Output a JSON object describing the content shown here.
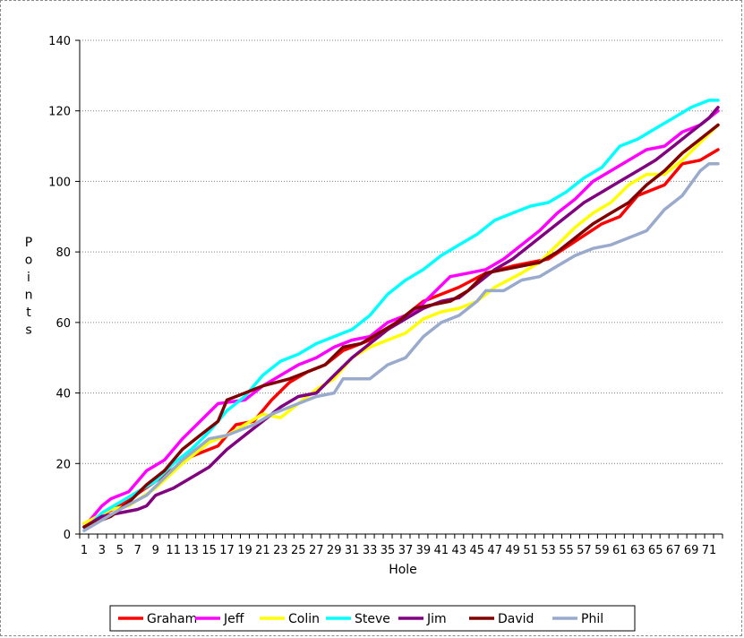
{
  "chart_data": {
    "type": "line",
    "title": "",
    "xlabel": "Hole",
    "ylabel": "Points",
    "x_range": [
      1,
      72
    ],
    "x_tick_step": 2,
    "ylim": [
      0,
      140
    ],
    "y_tick_step": 20,
    "grid": "horizontal dotted",
    "legend_position": "bottom",
    "series": [
      {
        "name": "Graham",
        "color": "#ff0000",
        "points": [
          [
            1,
            3
          ],
          [
            5,
            8
          ],
          [
            9,
            15
          ],
          [
            13,
            22
          ],
          [
            16,
            25
          ],
          [
            18,
            31
          ],
          [
            20,
            32
          ],
          [
            22,
            38
          ],
          [
            24,
            43
          ],
          [
            26,
            46
          ],
          [
            28,
            48
          ],
          [
            30,
            52
          ],
          [
            32,
            54
          ],
          [
            34,
            56
          ],
          [
            37,
            62
          ],
          [
            39,
            66
          ],
          [
            43,
            70
          ],
          [
            46,
            74
          ],
          [
            49,
            76
          ],
          [
            53,
            78
          ],
          [
            56,
            83
          ],
          [
            59,
            88
          ],
          [
            61,
            90
          ],
          [
            63,
            96
          ],
          [
            66,
            99
          ],
          [
            68,
            105
          ],
          [
            70,
            106
          ],
          [
            72,
            109
          ]
        ]
      },
      {
        "name": "Jeff",
        "color": "#ff00ff",
        "points": [
          [
            1,
            2
          ],
          [
            3,
            8
          ],
          [
            4,
            10
          ],
          [
            6,
            12
          ],
          [
            8,
            18
          ],
          [
            10,
            21
          ],
          [
            12,
            27
          ],
          [
            14,
            32
          ],
          [
            16,
            37
          ],
          [
            19,
            38
          ],
          [
            21,
            42
          ],
          [
            23,
            45
          ],
          [
            25,
            48
          ],
          [
            27,
            50
          ],
          [
            29,
            53
          ],
          [
            31,
            55
          ],
          [
            33,
            56
          ],
          [
            35,
            60
          ],
          [
            38,
            63
          ],
          [
            40,
            68
          ],
          [
            42,
            73
          ],
          [
            44,
            74
          ],
          [
            46,
            75
          ],
          [
            48,
            78
          ],
          [
            50,
            82
          ],
          [
            52,
            86
          ],
          [
            54,
            91
          ],
          [
            56,
            95
          ],
          [
            58,
            100
          ],
          [
            60,
            103
          ],
          [
            62,
            106
          ],
          [
            64,
            109
          ],
          [
            66,
            110
          ],
          [
            68,
            114
          ],
          [
            70,
            116
          ],
          [
            72,
            120
          ]
        ]
      },
      {
        "name": "Colin",
        "color": "#ffff00",
        "points": [
          [
            1,
            3
          ],
          [
            4,
            7
          ],
          [
            6,
            8
          ],
          [
            9,
            13
          ],
          [
            12,
            20
          ],
          [
            15,
            26
          ],
          [
            17,
            28
          ],
          [
            19,
            31
          ],
          [
            21,
            34
          ],
          [
            23,
            33
          ],
          [
            25,
            37
          ],
          [
            27,
            41
          ],
          [
            29,
            44
          ],
          [
            31,
            50
          ],
          [
            33,
            53
          ],
          [
            35,
            55
          ],
          [
            37,
            57
          ],
          [
            39,
            61
          ],
          [
            41,
            63
          ],
          [
            43,
            64
          ],
          [
            45,
            66
          ],
          [
            47,
            70
          ],
          [
            50,
            74
          ],
          [
            52,
            77
          ],
          [
            54,
            82
          ],
          [
            56,
            87
          ],
          [
            58,
            91
          ],
          [
            60,
            94
          ],
          [
            62,
            99
          ],
          [
            64,
            102
          ],
          [
            66,
            102
          ],
          [
            68,
            106
          ],
          [
            70,
            111
          ],
          [
            72,
            116
          ]
        ]
      },
      {
        "name": "Steve",
        "color": "#00ffff",
        "points": [
          [
            1,
            1
          ],
          [
            3,
            6
          ],
          [
            5,
            9
          ],
          [
            7,
            12
          ],
          [
            9,
            15
          ],
          [
            11,
            20
          ],
          [
            13,
            24
          ],
          [
            15,
            29
          ],
          [
            17,
            35
          ],
          [
            19,
            39
          ],
          [
            21,
            45
          ],
          [
            23,
            49
          ],
          [
            25,
            51
          ],
          [
            27,
            54
          ],
          [
            29,
            56
          ],
          [
            31,
            58
          ],
          [
            33,
            62
          ],
          [
            35,
            68
          ],
          [
            37,
            72
          ],
          [
            39,
            75
          ],
          [
            41,
            79
          ],
          [
            43,
            82
          ],
          [
            45,
            85
          ],
          [
            47,
            89
          ],
          [
            49,
            91
          ],
          [
            51,
            93
          ],
          [
            53,
            94
          ],
          [
            55,
            97
          ],
          [
            57,
            101
          ],
          [
            59,
            104
          ],
          [
            61,
            110
          ],
          [
            63,
            112
          ],
          [
            65,
            115
          ],
          [
            67,
            118
          ],
          [
            69,
            121
          ],
          [
            71,
            123
          ],
          [
            72,
            123
          ]
        ]
      },
      {
        "name": "Jim",
        "color": "#800080",
        "points": [
          [
            1,
            2
          ],
          [
            3,
            5
          ],
          [
            5,
            6
          ],
          [
            7,
            7
          ],
          [
            8,
            8
          ],
          [
            9,
            11
          ],
          [
            11,
            13
          ],
          [
            13,
            16
          ],
          [
            15,
            19
          ],
          [
            17,
            24
          ],
          [
            19,
            28
          ],
          [
            21,
            32
          ],
          [
            23,
            36
          ],
          [
            25,
            39
          ],
          [
            27,
            40
          ],
          [
            29,
            45
          ],
          [
            31,
            50
          ],
          [
            33,
            54
          ],
          [
            35,
            58
          ],
          [
            37,
            61
          ],
          [
            39,
            64
          ],
          [
            41,
            66
          ],
          [
            43,
            67
          ],
          [
            45,
            71
          ],
          [
            47,
            75
          ],
          [
            49,
            78
          ],
          [
            51,
            82
          ],
          [
            53,
            86
          ],
          [
            55,
            90
          ],
          [
            57,
            94
          ],
          [
            59,
            97
          ],
          [
            61,
            100
          ],
          [
            63,
            103
          ],
          [
            65,
            106
          ],
          [
            67,
            110
          ],
          [
            69,
            114
          ],
          [
            71,
            118
          ],
          [
            72,
            121
          ]
        ]
      },
      {
        "name": "David",
        "color": "#800000",
        "points": [
          [
            1,
            2
          ],
          [
            4,
            5
          ],
          [
            6,
            9
          ],
          [
            8,
            14
          ],
          [
            10,
            18
          ],
          [
            12,
            24
          ],
          [
            14,
            28
          ],
          [
            16,
            32
          ],
          [
            17,
            38
          ],
          [
            19,
            40
          ],
          [
            21,
            42
          ],
          [
            24,
            44
          ],
          [
            26,
            46
          ],
          [
            28,
            48
          ],
          [
            30,
            53
          ],
          [
            32,
            54
          ],
          [
            34,
            57
          ],
          [
            36,
            60
          ],
          [
            38,
            64
          ],
          [
            40,
            65
          ],
          [
            42,
            66
          ],
          [
            44,
            69
          ],
          [
            46,
            74
          ],
          [
            48,
            75
          ],
          [
            50,
            76
          ],
          [
            52,
            77
          ],
          [
            54,
            80
          ],
          [
            56,
            84
          ],
          [
            58,
            88
          ],
          [
            60,
            91
          ],
          [
            62,
            94
          ],
          [
            64,
            99
          ],
          [
            66,
            103
          ],
          [
            68,
            108
          ],
          [
            70,
            112
          ],
          [
            72,
            116
          ]
        ]
      },
      {
        "name": "Phil",
        "color": "#99aacc",
        "points": [
          [
            1,
            1
          ],
          [
            5,
            7
          ],
          [
            8,
            11
          ],
          [
            12,
            21
          ],
          [
            15,
            27
          ],
          [
            17,
            28
          ],
          [
            20,
            31
          ],
          [
            22,
            34
          ],
          [
            25,
            37
          ],
          [
            27,
            39
          ],
          [
            29,
            40
          ],
          [
            30,
            44
          ],
          [
            33,
            44
          ],
          [
            35,
            48
          ],
          [
            37,
            50
          ],
          [
            39,
            56
          ],
          [
            41,
            60
          ],
          [
            43,
            62
          ],
          [
            45,
            66
          ],
          [
            46,
            69
          ],
          [
            48,
            69
          ],
          [
            50,
            72
          ],
          [
            52,
            73
          ],
          [
            54,
            76
          ],
          [
            56,
            79
          ],
          [
            58,
            81
          ],
          [
            60,
            82
          ],
          [
            62,
            84
          ],
          [
            64,
            86
          ],
          [
            66,
            92
          ],
          [
            68,
            96
          ],
          [
            70,
            103
          ],
          [
            71,
            105
          ],
          [
            72,
            105
          ]
        ]
      }
    ]
  }
}
